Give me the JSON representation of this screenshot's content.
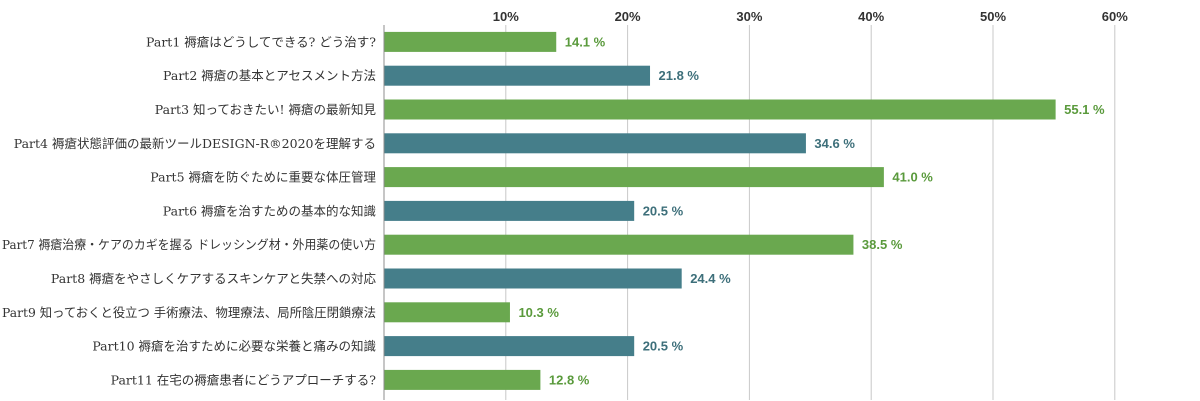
{
  "chart_data": {
    "type": "bar",
    "orientation": "horizontal",
    "categories": [
      "Part1 褥瘡はどうしてできる? どう治す?",
      "Part2 褥瘡の基本とアセスメント方法",
      "Part3 知っておきたい! 褥瘡の最新知見",
      "Part4 褥瘡状態評価の最新ツールDESIGN-R®2020を理解する",
      "Part5 褥瘡を防ぐために重要な体圧管理",
      "Part6 褥瘡を治すための基本的な知識",
      "Part7 褥瘡治療・ケアのカギを握る ドレッシング材・外用薬の使い方",
      "Part8 褥瘡をやさしくケアするスキンケアと失禁への対応",
      "Part9 知っておくと役立つ 手術療法、物理療法、局所陰圧閉鎖療法",
      "Part10 褥瘡を治すために必要な栄養と痛みの知識",
      "Part11 在宅の褥瘡患者にどうアプローチする?"
    ],
    "values": [
      14.1,
      21.8,
      55.1,
      34.6,
      41.0,
      20.5,
      38.5,
      24.4,
      10.3,
      20.5,
      12.8
    ],
    "value_labels": [
      "14.1 %",
      "21.8 %",
      "55.1 %",
      "34.6 %",
      "41.0 %",
      "20.5 %",
      "38.5 %",
      "24.4 %",
      "10.3 %",
      "20.5 %",
      "12.8 %"
    ],
    "bar_colors": [
      "#6aa84f",
      "#457e8a",
      "#6aa84f",
      "#457e8a",
      "#6aa84f",
      "#457e8a",
      "#6aa84f",
      "#457e8a",
      "#6aa84f",
      "#457e8a",
      "#6aa84f"
    ],
    "label_colors": [
      "#5a9a3c",
      "#3d6f7a",
      "#5a9a3c",
      "#3d6f7a",
      "#5a9a3c",
      "#3d6f7a",
      "#5a9a3c",
      "#3d6f7a",
      "#5a9a3c",
      "#3d6f7a",
      "#5a9a3c"
    ],
    "xticks": [
      "10%",
      "20%",
      "30%",
      "40%",
      "50%",
      "60%"
    ],
    "xtick_values": [
      10,
      20,
      30,
      40,
      50,
      60
    ],
    "xlim": [
      0,
      60
    ],
    "xaxis_position": "top",
    "grid": true,
    "legend": "none"
  }
}
